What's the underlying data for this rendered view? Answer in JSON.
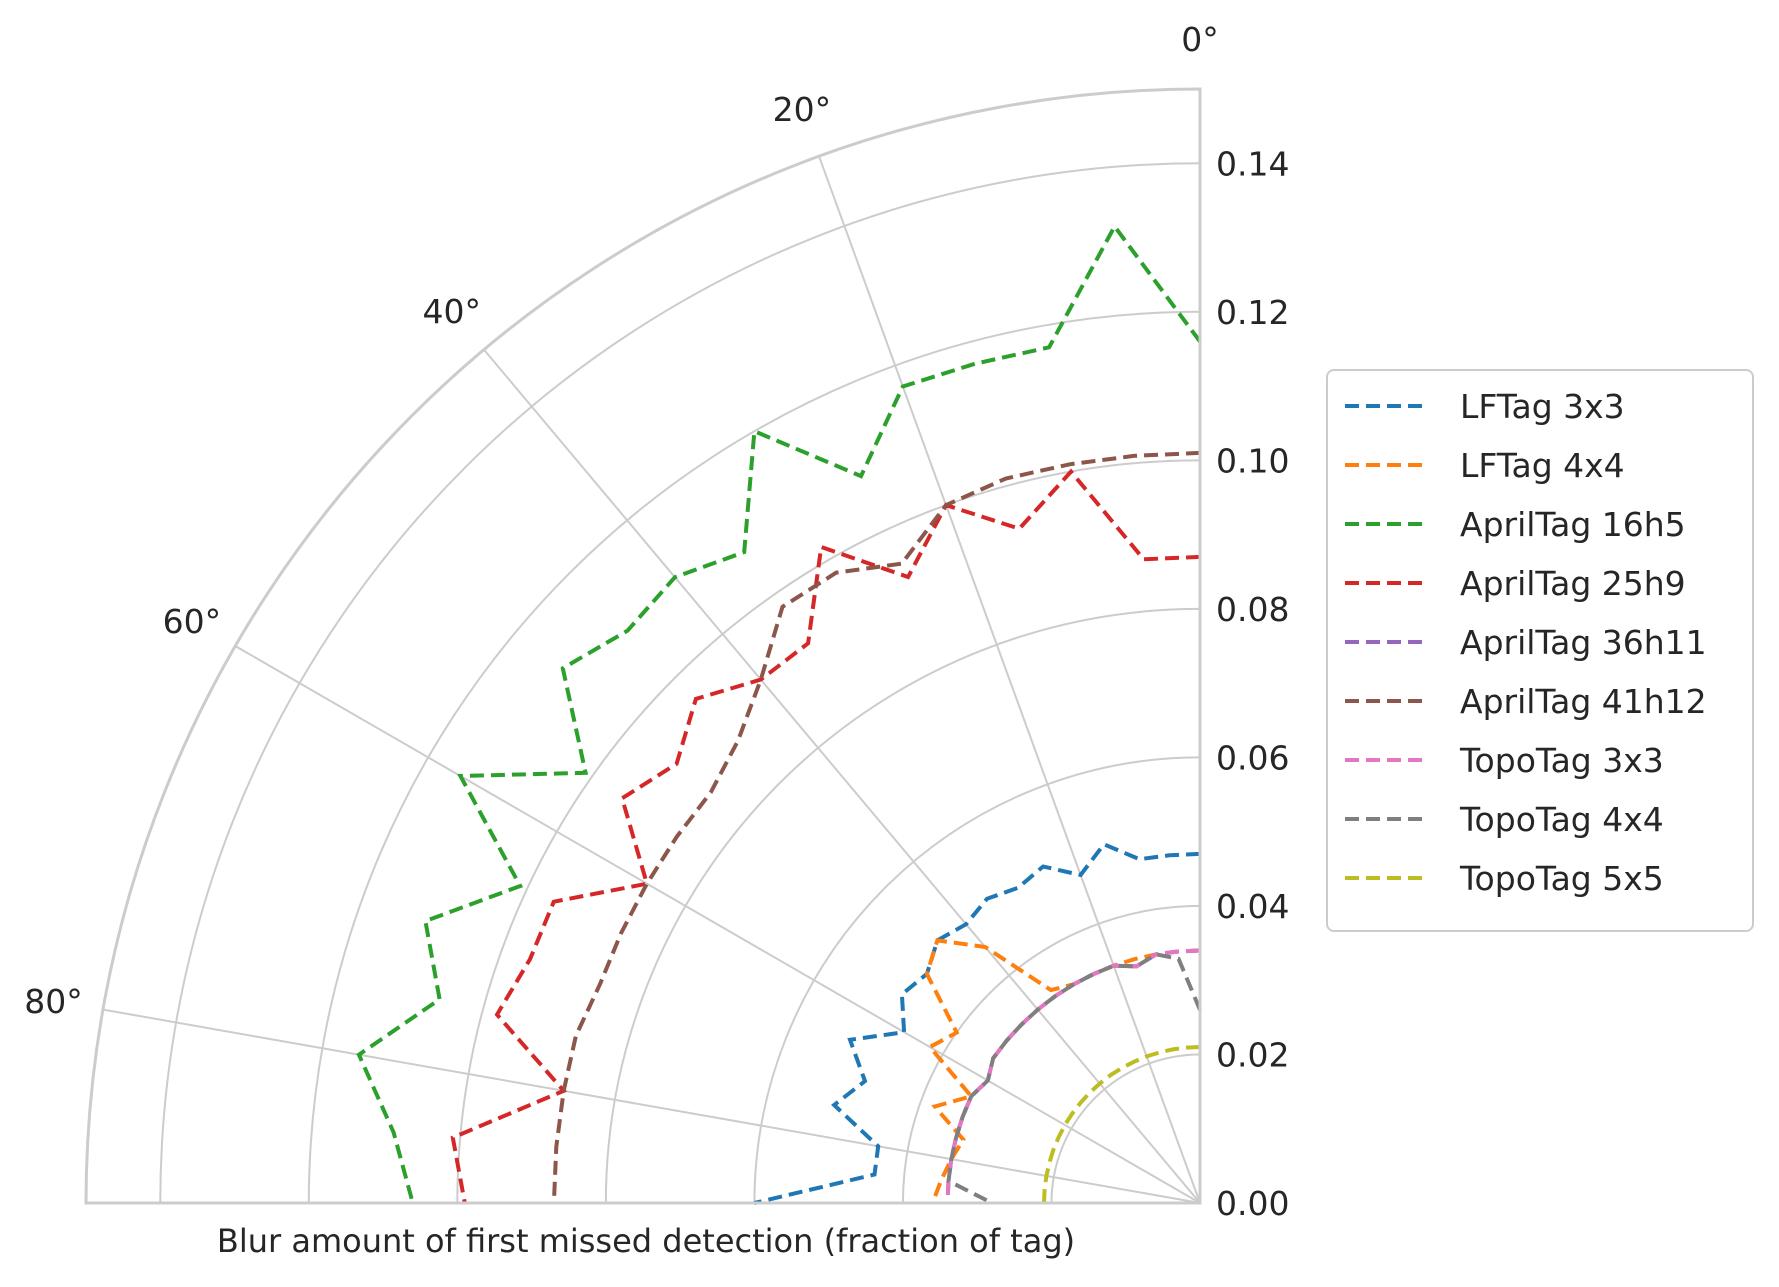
{
  "chart_data": {
    "type": "line",
    "subtype": "polar-quarter",
    "xlabel": "Blur amount of first missed detection (fraction of tag)",
    "angle_unit": "degrees",
    "theta_range": [
      0,
      90
    ],
    "theta_ticks": [
      0,
      20,
      40,
      60,
      80
    ],
    "theta_tick_labels": [
      "0°",
      "20°",
      "40°",
      "60°",
      "80°"
    ],
    "r_range": [
      0,
      0.15
    ],
    "r_ticks": [
      0.0,
      0.02,
      0.04,
      0.06,
      0.08,
      0.1,
      0.12,
      0.14
    ],
    "r_tick_labels": [
      "0.00",
      "0.02",
      "0.04",
      "0.06",
      "0.08",
      "0.10",
      "0.12",
      "0.14"
    ],
    "legend_position": "center-right",
    "line_style": "dashed",
    "series": [
      {
        "name": "LFTag 3x3",
        "color": "#1f77b4",
        "theta": [
          0,
          5,
          10,
          15,
          20,
          25,
          30,
          35,
          40,
          45,
          50,
          55,
          60,
          65,
          70,
          75,
          80,
          85,
          90
        ],
        "r": [
          0.047,
          0.047,
          0.047,
          0.05,
          0.047,
          0.05,
          0.049,
          0.05,
          0.049,
          0.05,
          0.048,
          0.049,
          0.046,
          0.052,
          0.048,
          0.051,
          0.044,
          0.044,
          0.06
        ]
      },
      {
        "name": "LFTag 4x4",
        "color": "#ff7f0e",
        "theta": [
          0,
          5,
          10,
          15,
          20,
          25,
          30,
          35,
          40,
          45,
          50,
          55,
          60,
          65,
          70,
          75,
          80,
          85,
          90
        ],
        "r": [
          0.034,
          0.034,
          0.034,
          0.034,
          0.034,
          0.034,
          0.034,
          0.035,
          0.045,
          0.05,
          0.048,
          0.04,
          0.042,
          0.034,
          0.038,
          0.033,
          0.034,
          0.035,
          0.036
        ]
      },
      {
        "name": "AprilTag 16h5",
        "color": "#2ca02c",
        "theta": [
          0,
          5,
          10,
          15,
          20,
          25,
          30,
          35,
          40,
          45,
          50,
          55,
          60,
          65,
          70,
          75,
          80,
          85,
          90
        ],
        "r": [
          0.116,
          0.132,
          0.117,
          0.117,
          0.117,
          0.108,
          0.12,
          0.107,
          0.11,
          0.109,
          0.112,
          0.101,
          0.115,
          0.101,
          0.111,
          0.106,
          0.115,
          0.109,
          0.106
        ]
      },
      {
        "name": "AprilTag 25h9",
        "color": "#d62728",
        "theta": [
          0,
          5,
          10,
          15,
          20,
          25,
          30,
          35,
          40,
          45,
          50,
          55,
          60,
          65,
          70,
          75,
          80,
          85,
          90
        ],
        "r": [
          0.087,
          0.087,
          0.1,
          0.094,
          0.1,
          0.093,
          0.102,
          0.092,
          0.092,
          0.096,
          0.092,
          0.095,
          0.086,
          0.096,
          0.096,
          0.098,
          0.087,
          0.101,
          0.099
        ]
      },
      {
        "name": "AprilTag 36h11",
        "color": "#9467bd",
        "theta": [
          0,
          5,
          10,
          15,
          20,
          25,
          30,
          35,
          40,
          45,
          50,
          55,
          60,
          65,
          70,
          75,
          80,
          85,
          90
        ],
        "r": [
          0.034,
          0.034,
          0.034,
          0.033,
          0.034,
          0.034,
          0.034,
          0.034,
          0.034,
          0.034,
          0.034,
          0.034,
          0.033,
          0.034,
          0.034,
          0.034,
          0.034,
          0.034,
          0.034
        ]
      },
      {
        "name": "AprilTag 41h12",
        "color": "#8c564b",
        "theta": [
          0,
          5,
          10,
          15,
          20,
          25,
          30,
          35,
          40,
          45,
          50,
          55,
          60,
          65,
          70,
          75,
          80,
          85,
          90
        ],
        "r": [
          0.101,
          0.101,
          0.101,
          0.101,
          0.1,
          0.095,
          0.098,
          0.098,
          0.092,
          0.088,
          0.086,
          0.086,
          0.086,
          0.086,
          0.086,
          0.087,
          0.087,
          0.087,
          0.087
        ]
      },
      {
        "name": "TopoTag 3x3",
        "color": "#e377c2",
        "theta": [
          0,
          5,
          10,
          15,
          20,
          25,
          30,
          35,
          40,
          45,
          50,
          55,
          60,
          65,
          70,
          75,
          80,
          85,
          90
        ],
        "r": [
          0.034,
          0.034,
          0.034,
          0.033,
          0.034,
          0.034,
          0.034,
          0.034,
          0.034,
          0.034,
          0.034,
          0.034,
          0.033,
          0.034,
          0.034,
          0.034,
          0.034,
          0.034,
          0.034
        ]
      },
      {
        "name": "TopoTag 4x4",
        "color": "#7f7f7f",
        "theta": [
          0,
          5,
          10,
          15,
          20,
          25,
          30,
          35,
          40,
          45,
          50,
          55,
          60,
          65,
          70,
          75,
          80,
          85,
          90
        ],
        "r": [
          0.026,
          0.033,
          0.034,
          0.033,
          0.034,
          0.034,
          0.034,
          0.034,
          0.034,
          0.034,
          0.034,
          0.034,
          0.033,
          0.034,
          0.034,
          0.034,
          0.034,
          0.034,
          0.028
        ]
      },
      {
        "name": "TopoTag 5x5",
        "color": "#bcbd22",
        "theta": [
          0,
          5,
          10,
          15,
          20,
          25,
          30,
          35,
          40,
          45,
          50,
          55,
          60,
          65,
          70,
          75,
          80,
          85,
          90
        ],
        "r": [
          0.021,
          0.021,
          0.021,
          0.021,
          0.021,
          0.021,
          0.021,
          0.021,
          0.021,
          0.021,
          0.021,
          0.021,
          0.021,
          0.021,
          0.021,
          0.021,
          0.021,
          0.021,
          0.021
        ]
      }
    ]
  }
}
